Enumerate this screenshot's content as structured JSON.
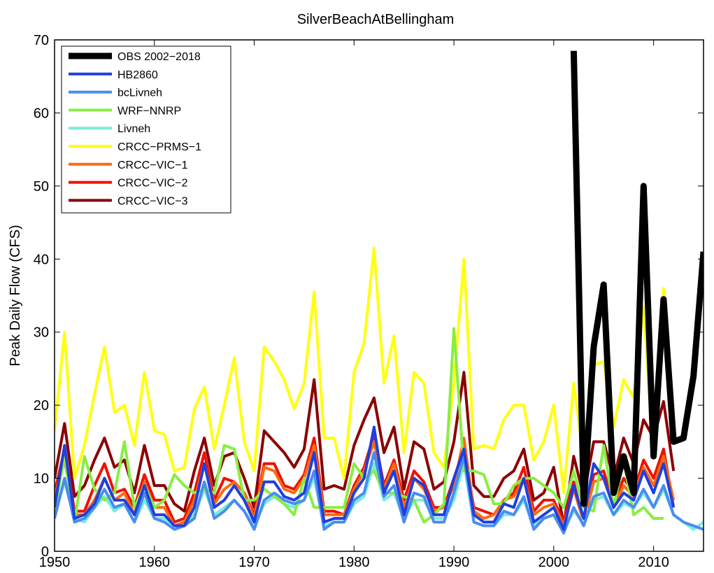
{
  "chart_data": {
    "type": "line",
    "title": "SilverBeachAtBellingham",
    "xlabel": "",
    "ylabel": "Peak Daily Flow (CFS)",
    "xlim": [
      1950,
      2015
    ],
    "ylim": [
      0,
      70
    ],
    "xticks": [
      1950,
      1960,
      1970,
      1980,
      1990,
      2000,
      2010
    ],
    "yticks": [
      0,
      10,
      20,
      30,
      40,
      50,
      60,
      70
    ],
    "legend_position": "top-left",
    "grid": false,
    "series": [
      {
        "name": "OBS 2002−2018",
        "color": "#000000",
        "width": 9,
        "x": [
          2002,
          2003,
          2004,
          2005,
          2006,
          2007,
          2008,
          2009,
          2010,
          2011,
          2012,
          2013,
          2014,
          2015
        ],
        "values": [
          68.5,
          6.5,
          28,
          36.5,
          8,
          13,
          8,
          50,
          13,
          34.5,
          15,
          15.5,
          24,
          41
        ]
      },
      {
        "name": "HB2860",
        "color": "#1f3fe0",
        "width": 4,
        "x": [
          1950,
          1951,
          1952,
          1953,
          1954,
          1955,
          1956,
          1957,
          1958,
          1959,
          1960,
          1961,
          1962,
          1963,
          1964,
          1965,
          1966,
          1967,
          1968,
          1969,
          1970,
          1971,
          1972,
          1973,
          1974,
          1975,
          1976,
          1977,
          1978,
          1979,
          1980,
          1981,
          1982,
          1983,
          1984,
          1985,
          1986,
          1987,
          1988,
          1989,
          1990,
          1991,
          1992,
          1993,
          1994,
          1995,
          1996,
          1997,
          1998,
          1999,
          2000,
          2001,
          2002,
          2003,
          2004,
          2005,
          2006,
          2007,
          2008,
          2009,
          2010,
          2011,
          2012
        ],
        "values": [
          6,
          14.5,
          4.5,
          5,
          6.5,
          10,
          7,
          7,
          5,
          9,
          5,
          5,
          3.5,
          3.5,
          6,
          12,
          6,
          7,
          9,
          7,
          4,
          9.5,
          9.5,
          7.5,
          7,
          8,
          13.5,
          4,
          4.5,
          4.5,
          8,
          10,
          17,
          8,
          11,
          5,
          10,
          9,
          5,
          5,
          10,
          14,
          5,
          4,
          4,
          6.5,
          6,
          10,
          4,
          5,
          6,
          3,
          9,
          4.5,
          12,
          10,
          6,
          8,
          7,
          11,
          8,
          12,
          6
        ]
      },
      {
        "name": "bcLivneh",
        "color": "#4a8cf0",
        "width": 4,
        "x": [
          1950,
          1951,
          1952,
          1953,
          1954,
          1955,
          1956,
          1957,
          1958,
          1959,
          1960,
          1961,
          1962,
          1963,
          1964,
          1965,
          1966,
          1967,
          1968,
          1969,
          1970,
          1971,
          1972,
          1973,
          1974,
          1975,
          1976,
          1977,
          1978,
          1979,
          1980,
          1981,
          1982,
          1983,
          1984,
          1985,
          1986,
          1987,
          1988,
          1989,
          1990,
          1991,
          1992,
          1993,
          1994,
          1995,
          1996,
          1997,
          1998,
          1999,
          2000,
          2001,
          2002,
          2003,
          2004,
          2005,
          2006,
          2007,
          2008,
          2009,
          2010,
          2011,
          2012,
          2013,
          2014,
          2015
        ],
        "values": [
          4.5,
          10,
          4,
          4.5,
          6,
          8.5,
          6,
          6.5,
          4,
          8,
          4.5,
          4,
          3,
          3.5,
          4.5,
          9.5,
          4.5,
          5.5,
          7,
          5.5,
          3,
          7,
          8,
          7,
          6.5,
          7,
          11,
          3,
          4,
          4,
          7,
          8,
          13.5,
          7.5,
          9,
          4,
          8,
          7.5,
          4,
          4,
          8,
          13,
          4,
          3.5,
          3.5,
          5.5,
          5,
          7.5,
          3,
          4.5,
          5,
          2.5,
          6,
          3.5,
          7.5,
          8,
          5,
          7,
          6,
          8.5,
          6,
          9,
          5,
          4,
          3.5,
          3
        ]
      },
      {
        "name": "WRF−NNRP",
        "color": "#88ee44",
        "width": 4,
        "x": [
          1950,
          1951,
          1952,
          1953,
          1954,
          1955,
          1956,
          1957,
          1958,
          1959,
          1960,
          1961,
          1962,
          1963,
          1964,
          1965,
          1966,
          1967,
          1968,
          1969,
          1970,
          1971,
          1972,
          1973,
          1974,
          1975,
          1976,
          1977,
          1978,
          1979,
          1980,
          1981,
          1982,
          1983,
          1984,
          1985,
          1986,
          1987,
          1988,
          1989,
          1990,
          1991,
          1992,
          1993,
          1994,
          1995,
          1996,
          1997,
          1998,
          1999,
          2000,
          2001,
          2002,
          2003,
          2004,
          2005,
          2006,
          2007,
          2008,
          2009,
          2010,
          2011
        ],
        "values": [
          5.5,
          13,
          4,
          13,
          8.5,
          7,
          8,
          15,
          6,
          9,
          6,
          7,
          10.5,
          9,
          8,
          8.5,
          8,
          14.5,
          14,
          7,
          7,
          8.5,
          7.5,
          6.5,
          5,
          10,
          6,
          6,
          6,
          6,
          12,
          10,
          11,
          8,
          8,
          7.5,
          7,
          4,
          5,
          6.5,
          30.5,
          11,
          11,
          10.5,
          6.5,
          6.5,
          9,
          10,
          10,
          9,
          8,
          6,
          11,
          6,
          5.5,
          14.5,
          6,
          12.5,
          5,
          6,
          4.5,
          4.5
        ]
      },
      {
        "name": "Livneh",
        "color": "#77eedd",
        "width": 4,
        "x": [
          1950,
          1951,
          1952,
          1953,
          1954,
          1955,
          1956,
          1957,
          1958,
          1959,
          1960,
          1961,
          1962,
          1963,
          1964,
          1965,
          1966,
          1967,
          1968,
          1969,
          1970,
          1971,
          1972,
          1973,
          1974,
          1975,
          1976,
          1977,
          1978,
          1979,
          1980,
          1981,
          1982,
          1983,
          1984,
          1985,
          1986,
          1987,
          1988,
          1989,
          1990,
          1991,
          1992,
          1993,
          1994,
          1995,
          1996,
          1997,
          1998,
          1999,
          2000,
          2001,
          2002,
          2003,
          2004,
          2005,
          2006,
          2007,
          2008,
          2009,
          2010,
          2011,
          2012,
          2013,
          2014,
          2015
        ],
        "values": [
          5,
          9.5,
          4.5,
          4,
          6,
          7.5,
          5.5,
          6.5,
          4,
          7,
          4.5,
          4.5,
          3.5,
          3.5,
          5,
          8.5,
          5,
          6,
          7,
          5.5,
          3.5,
          6.5,
          7.5,
          6.5,
          6,
          7,
          10,
          3.5,
          4,
          4,
          6.5,
          7.5,
          12,
          7,
          8,
          4.5,
          7,
          7,
          4.5,
          4.5,
          7,
          12,
          4,
          3.5,
          3.5,
          5,
          5,
          7,
          3.5,
          4.5,
          5,
          3,
          5.5,
          4,
          7,
          7.5,
          5,
          6.5,
          6,
          8,
          6,
          8.5,
          5,
          4,
          3,
          4
        ]
      },
      {
        "name": "CRCC−PRMS−1",
        "color": "#ffff11",
        "width": 4,
        "x": [
          1950,
          1951,
          1952,
          1953,
          1954,
          1955,
          1956,
          1957,
          1958,
          1959,
          1960,
          1961,
          1962,
          1963,
          1964,
          1965,
          1966,
          1967,
          1968,
          1969,
          1970,
          1971,
          1972,
          1973,
          1974,
          1975,
          1976,
          1977,
          1978,
          1979,
          1980,
          1981,
          1982,
          1983,
          1984,
          1985,
          1986,
          1987,
          1988,
          1989,
          1990,
          1991,
          1992,
          1993,
          1994,
          1995,
          1996,
          1997,
          1998,
          1999,
          2000,
          2001,
          2002,
          2003,
          2004,
          2005,
          2006,
          2007,
          2008,
          2009,
          2010,
          2011,
          2012
        ],
        "values": [
          16.5,
          30,
          10,
          14.5,
          21.5,
          28,
          19,
          20,
          14.5,
          24.5,
          16.5,
          16,
          11,
          11.5,
          19.5,
          22.5,
          14,
          20,
          26.5,
          15,
          11,
          28,
          26,
          23.5,
          19.5,
          23,
          35.5,
          15.5,
          15.5,
          10,
          24.5,
          28.5,
          41.5,
          23,
          29.5,
          13.5,
          24.5,
          23,
          13.5,
          11.5,
          23,
          40,
          14,
          14.5,
          14,
          18,
          20,
          20,
          12.5,
          15,
          20,
          8,
          23,
          12.5,
          25.5,
          26,
          17,
          23.5,
          21,
          33.5,
          13,
          36,
          18
        ]
      },
      {
        "name": "CRCC−VIC−1",
        "color": "#ff6a10",
        "width": 4,
        "x": [
          1950,
          1951,
          1952,
          1953,
          1954,
          1955,
          1956,
          1957,
          1958,
          1959,
          1960,
          1961,
          1962,
          1963,
          1964,
          1965,
          1966,
          1967,
          1968,
          1969,
          1970,
          1971,
          1972,
          1973,
          1974,
          1975,
          1976,
          1977,
          1978,
          1979,
          1980,
          1981,
          1982,
          1983,
          1984,
          1985,
          1986,
          1987,
          1988,
          1989,
          1990,
          1991,
          1992,
          1993,
          1994,
          1995,
          1996,
          1997,
          1998,
          1999,
          2000,
          2001,
          2002,
          2003,
          2004,
          2005,
          2006,
          2007,
          2008,
          2009,
          2010,
          2011,
          2012
        ],
        "values": [
          7.5,
          12.5,
          5,
          5,
          7,
          10,
          7,
          8,
          5,
          9.5,
          6,
          6,
          3.5,
          4,
          7,
          12,
          6.5,
          8.5,
          9.5,
          8,
          4.5,
          11.5,
          11,
          8.5,
          8,
          10,
          14.5,
          5,
          5,
          5,
          8.5,
          11,
          15,
          8.5,
          12,
          6,
          10,
          8.5,
          5.5,
          6,
          9,
          15.5,
          5.5,
          4.5,
          5,
          7,
          7.5,
          10,
          5,
          6,
          6.5,
          3.5,
          8.5,
          4,
          9.5,
          10,
          6,
          9,
          7.5,
          11.5,
          9,
          13,
          7
        ]
      },
      {
        "name": "CRCC−VIC−2",
        "color": "#ee1100",
        "width": 4,
        "x": [
          1950,
          1951,
          1952,
          1953,
          1954,
          1955,
          1956,
          1957,
          1958,
          1959,
          1960,
          1961,
          1962,
          1963,
          1964,
          1965,
          1966,
          1967,
          1968,
          1969,
          1970,
          1971,
          1972,
          1973,
          1974,
          1975,
          1976,
          1977,
          1978,
          1979,
          1980,
          1981,
          1982,
          1983,
          1984,
          1985,
          1986,
          1987,
          1988,
          1989,
          1990,
          1991,
          1992,
          1993,
          1994,
          1995,
          1996,
          1997,
          1998,
          1999,
          2000,
          2001,
          2002,
          2003,
          2004,
          2005,
          2006,
          2007,
          2008,
          2009,
          2010,
          2011,
          2012
        ],
        "values": [
          8,
          14,
          5.5,
          5.5,
          9,
          12,
          8,
          8.5,
          6,
          10.5,
          7,
          7,
          4,
          4.5,
          8,
          13.5,
          7,
          10,
          9.5,
          8,
          5,
          12,
          12,
          9,
          8.5,
          10.5,
          15.5,
          5.5,
          5.5,
          5,
          9,
          11.5,
          16,
          9,
          12.5,
          7,
          11,
          9.5,
          6,
          6,
          10,
          14,
          6,
          5.5,
          5,
          7,
          8,
          11.5,
          5.5,
          7,
          7,
          4,
          9.5,
          4,
          10.5,
          11,
          6.5,
          10,
          8,
          12.5,
          10,
          14,
          6
        ]
      },
      {
        "name": "CRCC−VIC−3",
        "color": "#8b0000",
        "width": 4,
        "x": [
          1950,
          1951,
          1952,
          1953,
          1954,
          1955,
          1956,
          1957,
          1958,
          1959,
          1960,
          1961,
          1962,
          1963,
          1964,
          1965,
          1966,
          1967,
          1968,
          1969,
          1970,
          1971,
          1972,
          1973,
          1974,
          1975,
          1976,
          1977,
          1978,
          1979,
          1980,
          1981,
          1982,
          1983,
          1984,
          1985,
          1986,
          1987,
          1988,
          1989,
          1990,
          1991,
          1992,
          1993,
          1994,
          1995,
          1996,
          1997,
          1998,
          1999,
          2000,
          2001,
          2002,
          2003,
          2004,
          2005,
          2006,
          2007,
          2008,
          2009,
          2010,
          2011,
          2012
        ],
        "values": [
          10,
          17.5,
          7.5,
          9,
          12.5,
          15.5,
          11.5,
          12.5,
          8,
          14.5,
          9,
          9,
          6.5,
          5.5,
          11,
          15.5,
          9,
          13,
          13.5,
          10,
          6,
          16.5,
          15,
          13.5,
          11.5,
          14,
          23.5,
          8.5,
          9,
          8.5,
          14.5,
          18,
          21,
          13.5,
          17,
          8.5,
          15,
          14,
          8.5,
          9.5,
          15,
          24.5,
          9,
          7.5,
          7.5,
          10,
          11,
          14,
          7,
          8,
          11.5,
          3.5,
          13,
          7.5,
          15,
          15,
          10,
          15.5,
          12,
          18,
          15.5,
          20.5,
          11
        ]
      }
    ]
  }
}
